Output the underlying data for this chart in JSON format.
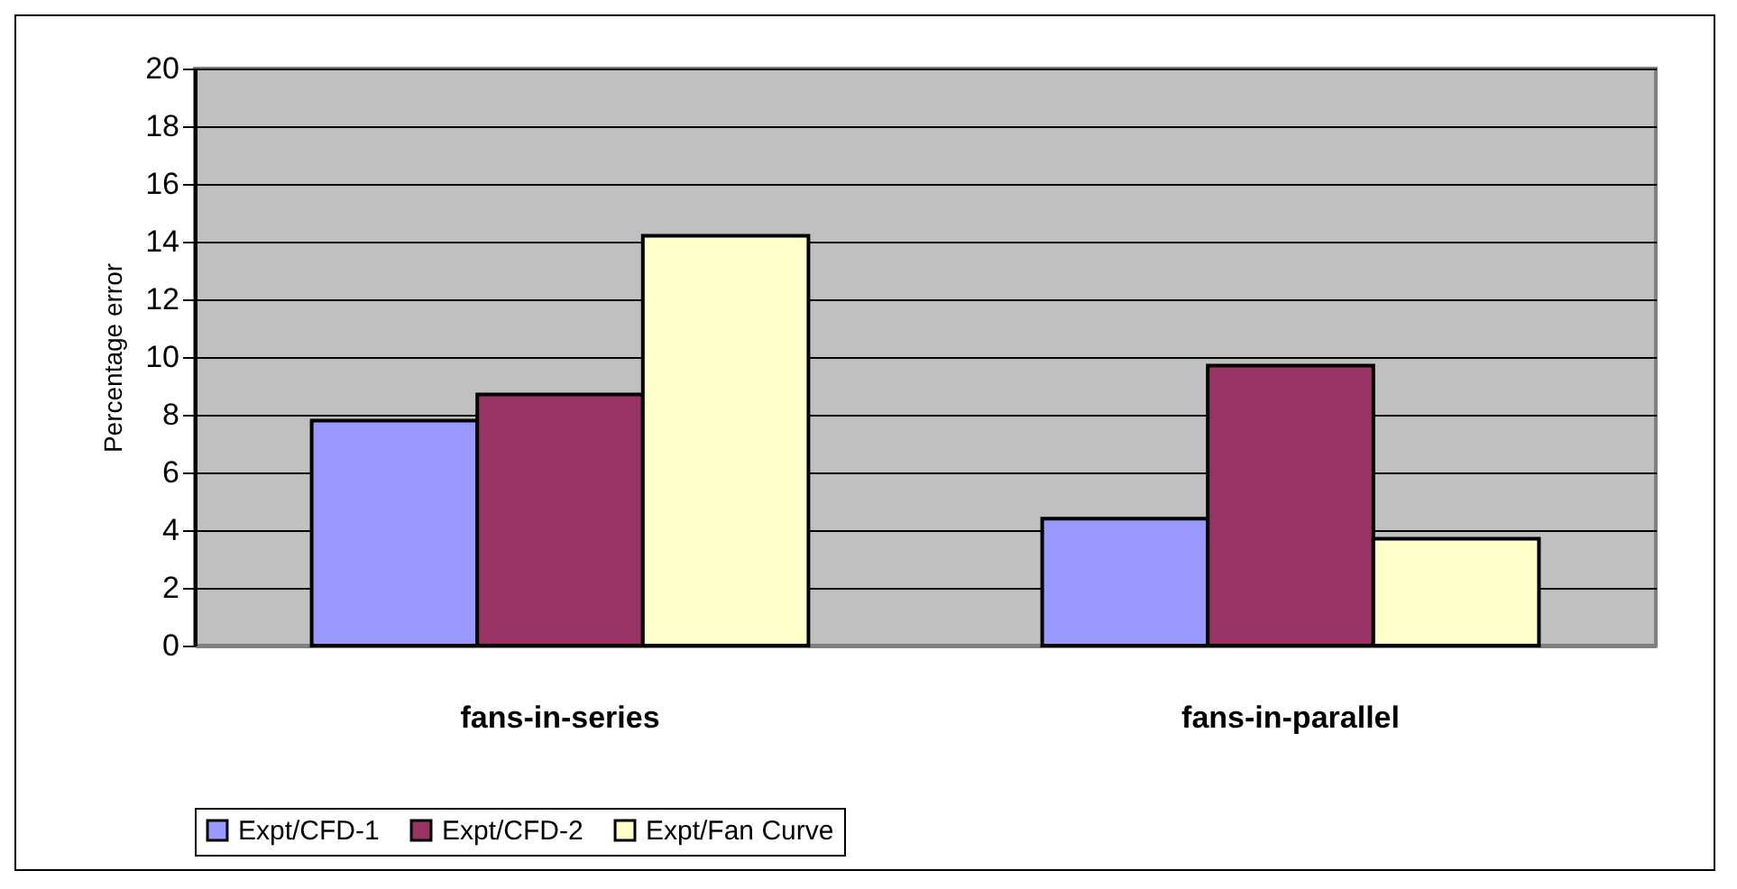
{
  "chart_data": {
    "type": "bar",
    "ylabel": "Percentage error",
    "categories": [
      "fans-in-series",
      "fans-in-parallel"
    ],
    "series": [
      {
        "name": "Expt/CFD-1",
        "color": "#9999ff",
        "values": [
          7.8,
          4.4
        ]
      },
      {
        "name": "Expt/CFD-2",
        "color": "#993366",
        "values": [
          8.7,
          9.7
        ]
      },
      {
        "name": "Expt/Fan Curve",
        "color": "#ffffcc",
        "values": [
          14.2,
          3.7
        ]
      }
    ],
    "ylim": [
      0,
      20
    ],
    "yticks": [
      0,
      2,
      4,
      6,
      8,
      10,
      12,
      14,
      16,
      18,
      20
    ],
    "grid": "y",
    "legend": "bottom"
  }
}
